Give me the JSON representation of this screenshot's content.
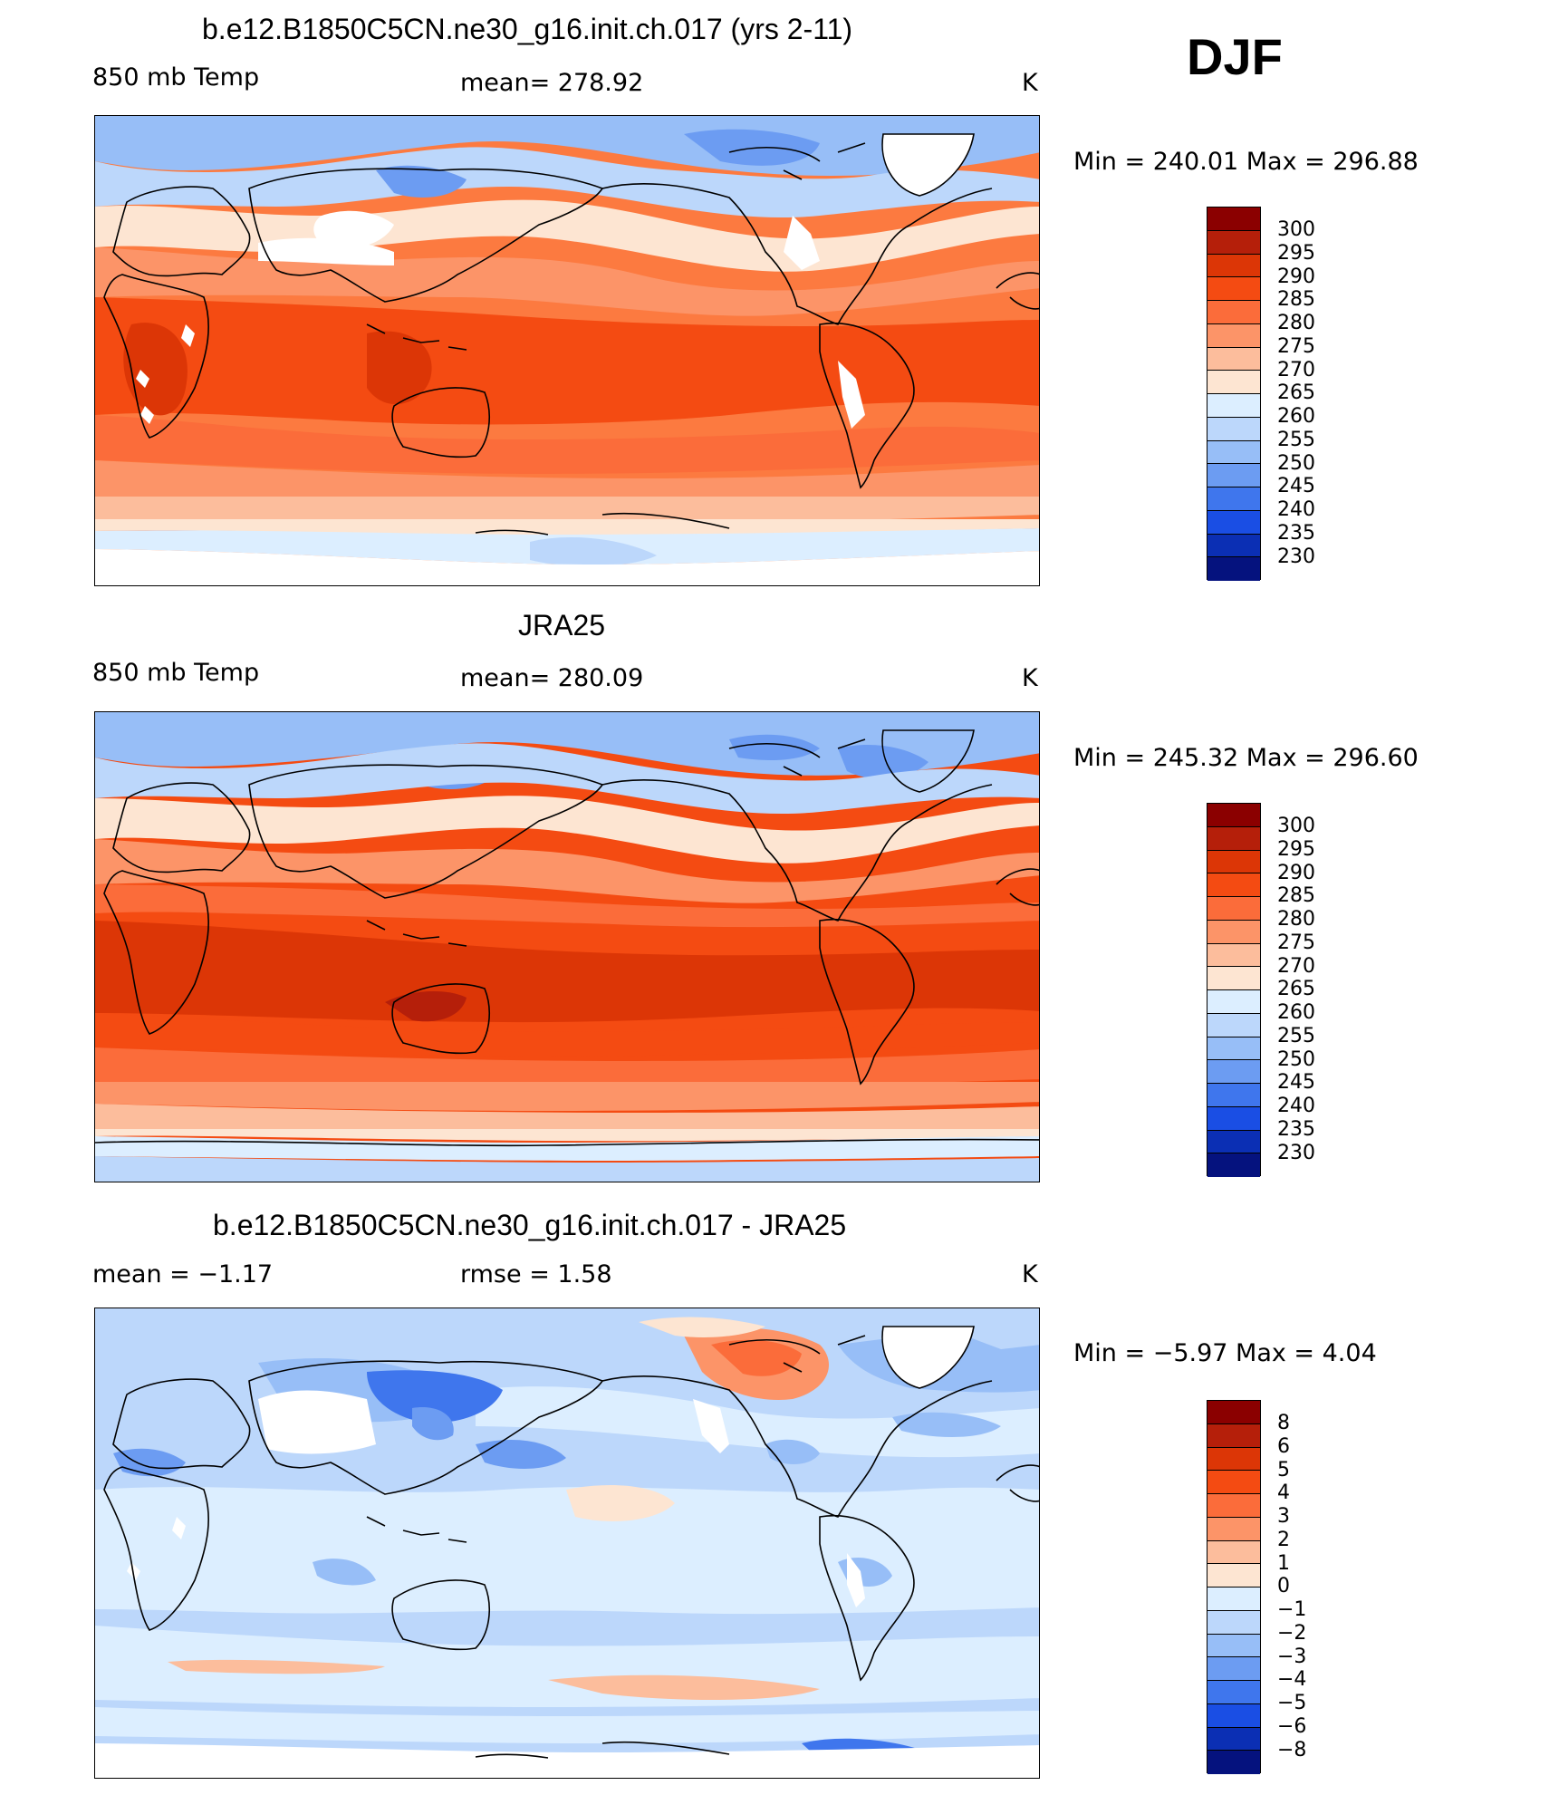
{
  "season": "DJF",
  "panels": [
    {
      "title": "b.e12.B1850C5CN.ne30_g16.init.ch.017 (yrs 2-11)",
      "left_label": "850 mb Temp",
      "center_label": "mean=  278.92",
      "right_label": "K",
      "min_max": "Min  =  240.01  Max  =  296.88",
      "kind": "abs"
    },
    {
      "title": "JRA25",
      "left_label": "850 mb Temp",
      "center_label": "mean=  280.09",
      "right_label": "K",
      "min_max": "Min  =  245.32  Max  =  296.60",
      "kind": "abs"
    },
    {
      "title": "b.e12.B1850C5CN.ne30_g16.init.ch.017 - JRA25",
      "left_label": "mean  =    −1.17",
      "center_label": "rmse  =     1.58",
      "right_label": "K",
      "min_max": "Min  =    −5.97  Max  =     4.04",
      "kind": "diff"
    }
  ],
  "colorbar_abs": {
    "ticks": [
      "300",
      "295",
      "290",
      "285",
      "280",
      "275",
      "270",
      "265",
      "260",
      "255",
      "250",
      "245",
      "240",
      "235",
      "230"
    ],
    "colors": [
      "#8b0000",
      "#b51f0a",
      "#dc3606",
      "#f44b12",
      "#fb6c3a",
      "#fc9468",
      "#fcbd9c",
      "#fde5d2",
      "#dceeff",
      "#bcd7fb",
      "#97bef7",
      "#6c9cf2",
      "#3f76ed",
      "#1a4ee4",
      "#0b2fb4",
      "#05127e"
    ]
  },
  "colorbar_diff": {
    "ticks": [
      "8",
      "6",
      "5",
      "4",
      "3",
      "2",
      "1",
      "0",
      "−1",
      "−2",
      "−3",
      "−4",
      "−5",
      "−6",
      "−8"
    ],
    "colors": [
      "#8b0000",
      "#b51f0a",
      "#dc3606",
      "#f44b12",
      "#fb6c3a",
      "#fc9468",
      "#fcbd9c",
      "#fde5d2",
      "#dceeff",
      "#bcd7fb",
      "#97bef7",
      "#6c9cf2",
      "#3f76ed",
      "#1a4ee4",
      "#0b2fb4",
      "#05127e"
    ]
  }
}
